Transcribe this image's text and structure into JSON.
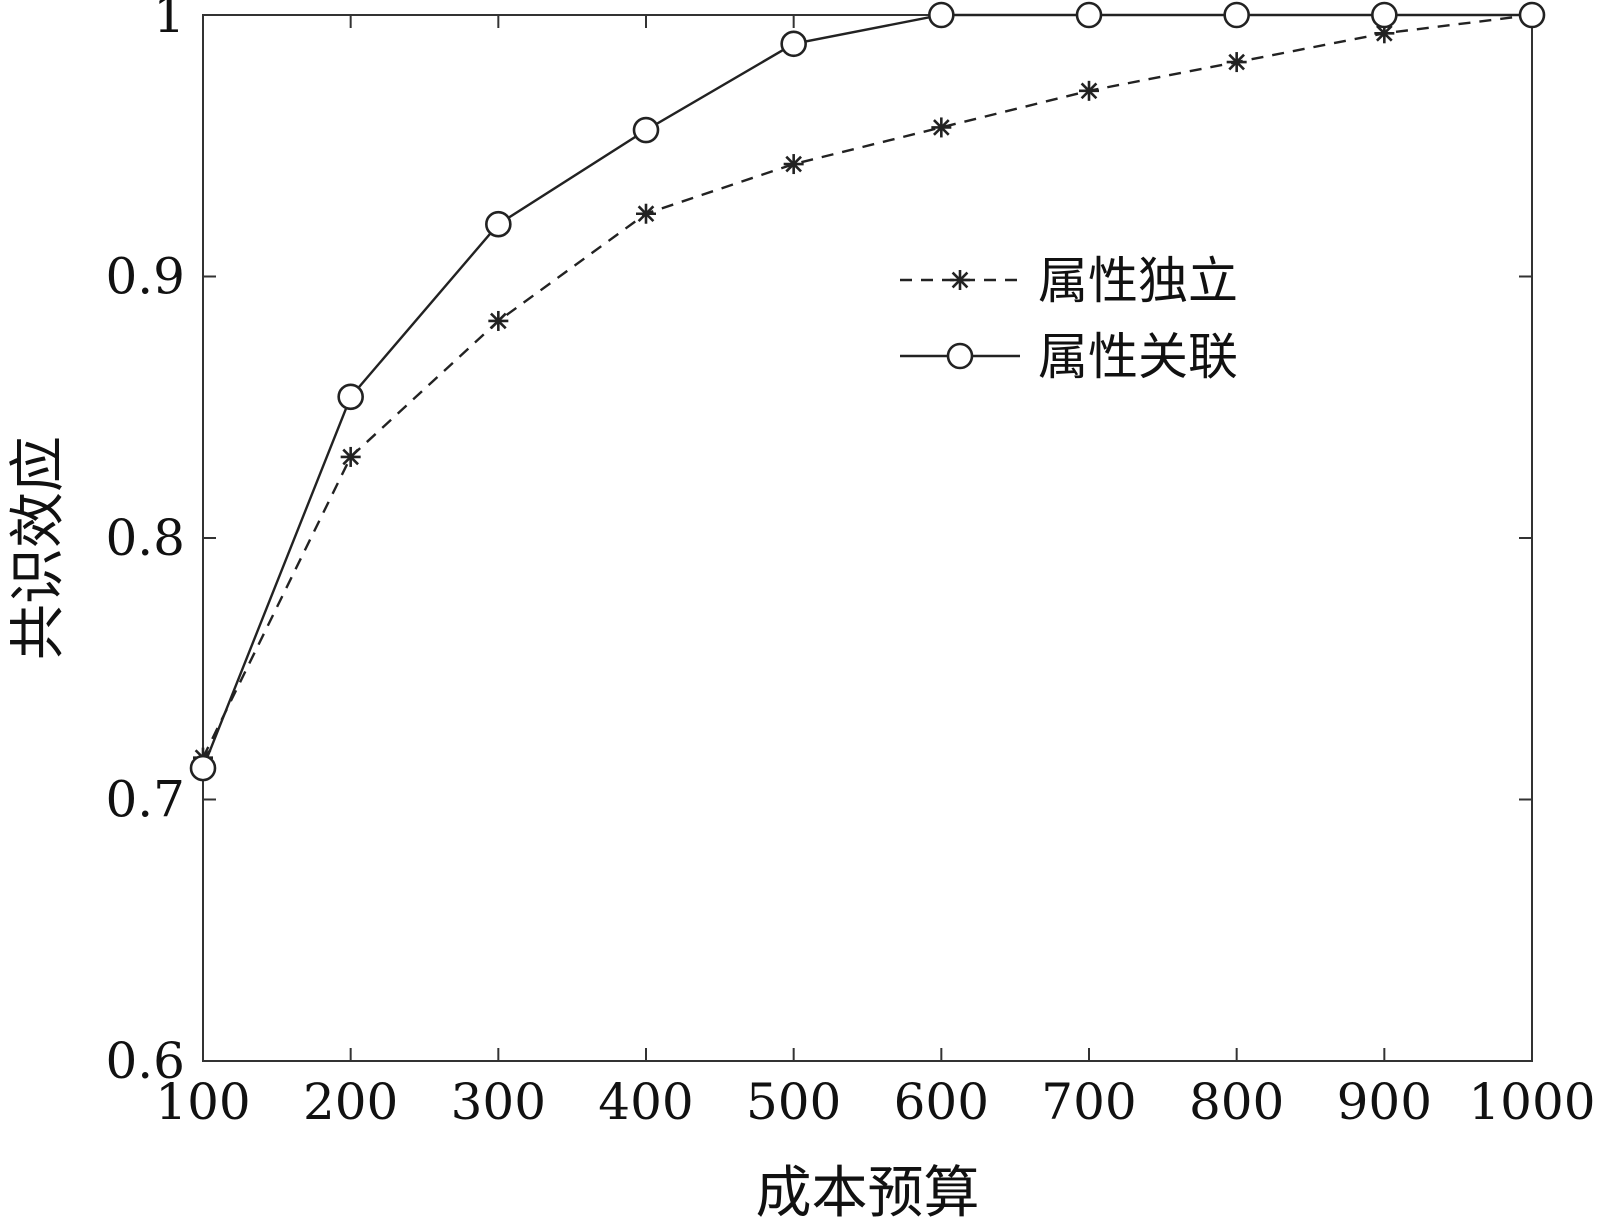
{
  "chart_data": {
    "type": "line",
    "title": "",
    "xlabel": "成本预算",
    "ylabel": "共识效应",
    "x": [
      100,
      200,
      300,
      400,
      500,
      600,
      700,
      800,
      900,
      1000
    ],
    "x_tick_labels": [
      "100",
      "200",
      "300",
      "400",
      "500",
      "600",
      "700",
      "800",
      "900",
      "1000"
    ],
    "y_ticks": [
      0.6,
      0.7,
      0.8,
      0.9,
      1.0
    ],
    "y_tick_labels": [
      "0.6",
      "0.7",
      "0.8",
      "0.9",
      "1"
    ],
    "xlim": [
      100,
      1000
    ],
    "ylim": [
      0.6,
      1.0
    ],
    "grid": false,
    "legend_position": "upper-right",
    "series": [
      {
        "name": "属性独立",
        "line_style": "dashed",
        "marker": "asterisk",
        "color": "#222222",
        "values": [
          0.716,
          0.831,
          0.883,
          0.924,
          0.943,
          0.957,
          0.971,
          0.982,
          0.993,
          1.0
        ]
      },
      {
        "name": "属性关联",
        "line_style": "solid",
        "marker": "circle",
        "color": "#222222",
        "values": [
          0.712,
          0.854,
          0.92,
          0.956,
          0.989,
          1.0,
          1.0,
          1.0,
          1.0,
          1.0
        ]
      }
    ]
  }
}
